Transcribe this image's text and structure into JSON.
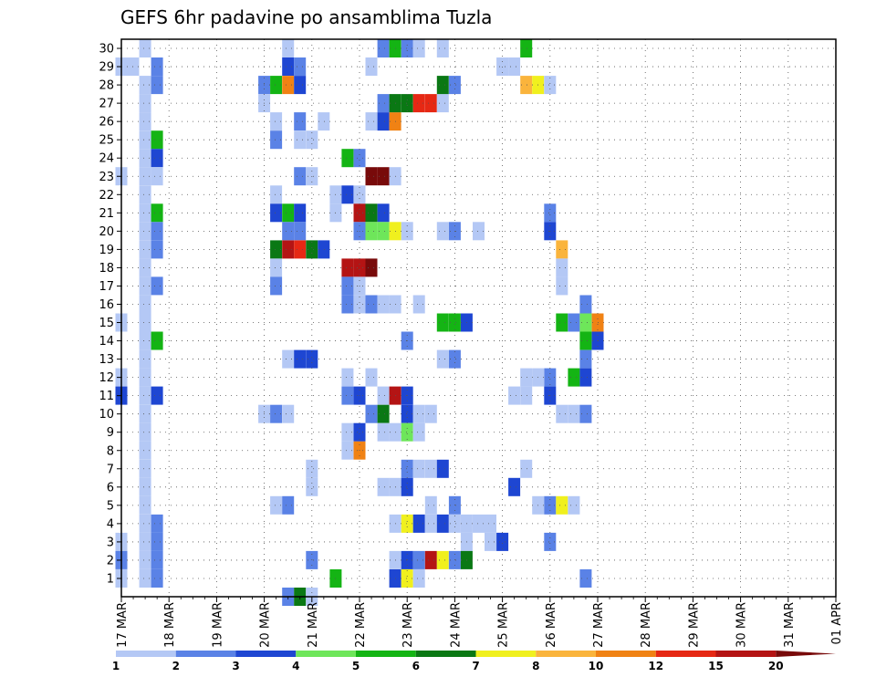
{
  "chart_data": {
    "type": "heatmap",
    "title": "GEFS 6hr padavine po ansamblima Tuzla",
    "x_tick_labels": [
      "17 MAR",
      "18 MAR",
      "19 MAR",
      "20 MAR",
      "21 MAR",
      "22 MAR",
      "23 MAR",
      "24 MAR",
      "25 MAR",
      "26 MAR",
      "27 MAR",
      "28 MAR",
      "29 MAR",
      "30 MAR",
      "31 MAR",
      "01 APR"
    ],
    "y_tick_labels": [
      "1",
      "2",
      "3",
      "4",
      "5",
      "6",
      "7",
      "8",
      "9",
      "10",
      "11",
      "12",
      "13",
      "14",
      "15",
      "16",
      "17",
      "18",
      "19",
      "20",
      "21",
      "22",
      "23",
      "24",
      "25",
      "26",
      "27",
      "28",
      "29",
      "30"
    ],
    "x_range_hours": [
      0,
      360
    ],
    "time_step_hours": 6,
    "members": 30,
    "grid": true,
    "colorbar": {
      "levels": [
        1,
        2,
        3,
        4,
        5,
        6,
        7,
        8,
        10,
        12,
        15,
        20
      ],
      "labels": [
        "1",
        "2",
        "3",
        "4",
        "5",
        "6",
        "7",
        "8",
        "10",
        "12",
        "15",
        "20"
      ],
      "colors": [
        "#b4c8f5",
        "#5a82e6",
        "#1e46d2",
        "#6ee65a",
        "#14b414",
        "#0a7814",
        "#f0f01e",
        "#fab43c",
        "#f08214",
        "#e62814",
        "#b41414",
        "#780a0a"
      ]
    },
    "cells_note": "each cell = [member, hour_offset_from_17MAR_00UTC, category_index 0-11]",
    "cells": [
      [
        30,
        1,
        0
      ],
      [
        29,
        0,
        0
      ],
      [
        28,
        1,
        0
      ],
      [
        27,
        1,
        0
      ],
      [
        26,
        1,
        0
      ],
      [
        25,
        1,
        0
      ],
      [
        24,
        1,
        0
      ],
      [
        23,
        1,
        0
      ],
      [
        22,
        1,
        0
      ],
      [
        21,
        1,
        0
      ],
      [
        20,
        1,
        0
      ],
      [
        19,
        1,
        0
      ],
      [
        18,
        1,
        0
      ],
      [
        17,
        1,
        0
      ],
      [
        16,
        1,
        0
      ],
      [
        15,
        1,
        0
      ],
      [
        14,
        1,
        0
      ],
      [
        13,
        1,
        0
      ],
      [
        12,
        1,
        0
      ],
      [
        11,
        1,
        0
      ],
      [
        10,
        1,
        0
      ],
      [
        9,
        1,
        0
      ],
      [
        8,
        1,
        0
      ],
      [
        7,
        1,
        0
      ],
      [
        6,
        1,
        0
      ],
      [
        5,
        1,
        0
      ],
      [
        4,
        1,
        0
      ],
      [
        3,
        1,
        0
      ],
      [
        2,
        1,
        0
      ],
      [
        1,
        1,
        0
      ],
      [
        29,
        2,
        1
      ],
      [
        28,
        2,
        1
      ],
      [
        25,
        2,
        4
      ],
      [
        24,
        2,
        2
      ],
      [
        23,
        2,
        0
      ],
      [
        21,
        2,
        4
      ],
      [
        20,
        2,
        1
      ],
      [
        19,
        2,
        1
      ],
      [
        17,
        2,
        1
      ],
      [
        14,
        2,
        4
      ],
      [
        11,
        2,
        2
      ],
      [
        4,
        2,
        1
      ],
      [
        3,
        2,
        1
      ],
      [
        2,
        2,
        1
      ],
      [
        1,
        2,
        1
      ],
      [
        29,
        -1,
        0
      ],
      [
        23,
        -1,
        0
      ],
      [
        15,
        -1,
        0
      ],
      [
        12,
        -1,
        0
      ],
      [
        11,
        -1,
        2
      ],
      [
        3,
        -1,
        0
      ],
      [
        2,
        -1,
        1
      ],
      [
        1,
        -1,
        0
      ],
      [
        30,
        13,
        0
      ],
      [
        29,
        13,
        2
      ],
      [
        29,
        14,
        1
      ],
      [
        28,
        11,
        1
      ],
      [
        28,
        12,
        4
      ],
      [
        28,
        13,
        8
      ],
      [
        28,
        14,
        2
      ],
      [
        27,
        11,
        0
      ],
      [
        26,
        12,
        0
      ],
      [
        26,
        14,
        1
      ],
      [
        26,
        16,
        0
      ],
      [
        25,
        12,
        1
      ],
      [
        25,
        14,
        0
      ],
      [
        25,
        15,
        0
      ],
      [
        24,
        18,
        4
      ],
      [
        24,
        19,
        1
      ],
      [
        23,
        14,
        1
      ],
      [
        23,
        15,
        0
      ],
      [
        22,
        12,
        0
      ],
      [
        22,
        17,
        0
      ],
      [
        22,
        18,
        2
      ],
      [
        22,
        19,
        0
      ],
      [
        21,
        12,
        2
      ],
      [
        21,
        13,
        4
      ],
      [
        21,
        14,
        2
      ],
      [
        21,
        17,
        0
      ],
      [
        20,
        13,
        1
      ],
      [
        20,
        14,
        1
      ],
      [
        19,
        12,
        5
      ],
      [
        19,
        13,
        10
      ],
      [
        19,
        14,
        9
      ],
      [
        19,
        15,
        5
      ],
      [
        19,
        16,
        2
      ],
      [
        18,
        12,
        0
      ],
      [
        17,
        12,
        1
      ],
      [
        13,
        13,
        0
      ],
      [
        13,
        14,
        2
      ],
      [
        13,
        15,
        2
      ],
      [
        12,
        18,
        0
      ],
      [
        10,
        11,
        0
      ],
      [
        10,
        12,
        1
      ],
      [
        10,
        13,
        0
      ],
      [
        9,
        18,
        0
      ],
      [
        8,
        19,
        8
      ],
      [
        8,
        18,
        0
      ],
      [
        7,
        15,
        0
      ],
      [
        6,
        15,
        0
      ],
      [
        5,
        12,
        0
      ],
      [
        5,
        13,
        1
      ],
      [
        2,
        15,
        1
      ],
      [
        1,
        17,
        4
      ],
      [
        0,
        13,
        1
      ],
      [
        0,
        14,
        5
      ],
      [
        0,
        15,
        0
      ],
      [
        9,
        19,
        2
      ],
      [
        30,
        21,
        1
      ],
      [
        30,
        22,
        4
      ],
      [
        30,
        23,
        1
      ],
      [
        30,
        24,
        0
      ],
      [
        30,
        26,
        0
      ],
      [
        29,
        20,
        0
      ],
      [
        26,
        20,
        0
      ],
      [
        26,
        21,
        2
      ],
      [
        26,
        22,
        8
      ],
      [
        27,
        21,
        1
      ],
      [
        27,
        22,
        5
      ],
      [
        27,
        23,
        5
      ],
      [
        27,
        24,
        9
      ],
      [
        27,
        25,
        9
      ],
      [
        27,
        26,
        0
      ],
      [
        28,
        26,
        5
      ],
      [
        28,
        27,
        1
      ],
      [
        23,
        20,
        11
      ],
      [
        23,
        21,
        11
      ],
      [
        23,
        22,
        0
      ],
      [
        21,
        19,
        10
      ],
      [
        21,
        20,
        5
      ],
      [
        21,
        21,
        2
      ],
      [
        20,
        19,
        1
      ],
      [
        20,
        20,
        3
      ],
      [
        20,
        21,
        3
      ],
      [
        20,
        22,
        6
      ],
      [
        20,
        23,
        0
      ],
      [
        20,
        26,
        0
      ],
      [
        20,
        27,
        1
      ],
      [
        20,
        29,
        0
      ],
      [
        18,
        18,
        10
      ],
      [
        18,
        19,
        10
      ],
      [
        18,
        20,
        11
      ],
      [
        17,
        18,
        1
      ],
      [
        17,
        19,
        0
      ],
      [
        16,
        18,
        1
      ],
      [
        16,
        19,
        0
      ],
      [
        16,
        20,
        1
      ],
      [
        16,
        21,
        0
      ],
      [
        16,
        22,
        0
      ],
      [
        16,
        24,
        0
      ],
      [
        15,
        26,
        4
      ],
      [
        15,
        27,
        4
      ],
      [
        15,
        28,
        2
      ],
      [
        14,
        23,
        1
      ],
      [
        13,
        26,
        0
      ],
      [
        13,
        27,
        1
      ],
      [
        12,
        20,
        0
      ],
      [
        11,
        18,
        1
      ],
      [
        11,
        19,
        2
      ],
      [
        11,
        21,
        0
      ],
      [
        11,
        22,
        10
      ],
      [
        11,
        23,
        2
      ],
      [
        10,
        20,
        1
      ],
      [
        10,
        21,
        5
      ],
      [
        10,
        23,
        2
      ],
      [
        10,
        24,
        0
      ],
      [
        10,
        25,
        0
      ],
      [
        9,
        21,
        0
      ],
      [
        9,
        22,
        0
      ],
      [
        9,
        23,
        3
      ],
      [
        9,
        24,
        0
      ],
      [
        7,
        23,
        1
      ],
      [
        7,
        24,
        0
      ],
      [
        7,
        25,
        0
      ],
      [
        7,
        26,
        2
      ],
      [
        6,
        21,
        0
      ],
      [
        6,
        22,
        0
      ],
      [
        6,
        23,
        2
      ],
      [
        5,
        25,
        0
      ],
      [
        5,
        27,
        1
      ],
      [
        4,
        22,
        0
      ],
      [
        4,
        23,
        6
      ],
      [
        4,
        24,
        2
      ],
      [
        4,
        25,
        0
      ],
      [
        4,
        26,
        2
      ],
      [
        4,
        27,
        0
      ],
      [
        4,
        28,
        0
      ],
      [
        3,
        28,
        0
      ],
      [
        2,
        22,
        0
      ],
      [
        2,
        23,
        2
      ],
      [
        2,
        24,
        1
      ],
      [
        2,
        25,
        10
      ],
      [
        2,
        26,
        6
      ],
      [
        2,
        27,
        1
      ],
      [
        2,
        28,
        5
      ],
      [
        1,
        22,
        2
      ],
      [
        1,
        23,
        6
      ],
      [
        1,
        24,
        0
      ],
      [
        30,
        33,
        4
      ],
      [
        29,
        31,
        0
      ],
      [
        29,
        32,
        0
      ],
      [
        28,
        33,
        7
      ],
      [
        28,
        34,
        6
      ],
      [
        28,
        35,
        0
      ],
      [
        15,
        36,
        4
      ],
      [
        15,
        37,
        1
      ],
      [
        15,
        38,
        3
      ],
      [
        15,
        39,
        8
      ],
      [
        16,
        38,
        1
      ],
      [
        19,
        36,
        7
      ],
      [
        18,
        36,
        0
      ],
      [
        17,
        36,
        0
      ],
      [
        14,
        38,
        4
      ],
      [
        14,
        39,
        2
      ],
      [
        12,
        33,
        0
      ],
      [
        12,
        35,
        1
      ],
      [
        12,
        34,
        0
      ],
      [
        12,
        37,
        4
      ],
      [
        12,
        38,
        2
      ],
      [
        11,
        32,
        0
      ],
      [
        11,
        33,
        0
      ],
      [
        11,
        35,
        2
      ],
      [
        10,
        36,
        0
      ],
      [
        10,
        37,
        0
      ],
      [
        10,
        38,
        1
      ],
      [
        7,
        33,
        0
      ],
      [
        6,
        32,
        2
      ],
      [
        5,
        34,
        0
      ],
      [
        5,
        35,
        1
      ],
      [
        5,
        36,
        6
      ],
      [
        5,
        37,
        0
      ],
      [
        4,
        29,
        0
      ],
      [
        4,
        30,
        0
      ],
      [
        3,
        30,
        0
      ],
      [
        3,
        31,
        2
      ],
      [
        3,
        35,
        1
      ],
      [
        1,
        38,
        1
      ],
      [
        21,
        35,
        1
      ],
      [
        20,
        35,
        2
      ],
      [
        13,
        38,
        1
      ]
    ]
  }
}
